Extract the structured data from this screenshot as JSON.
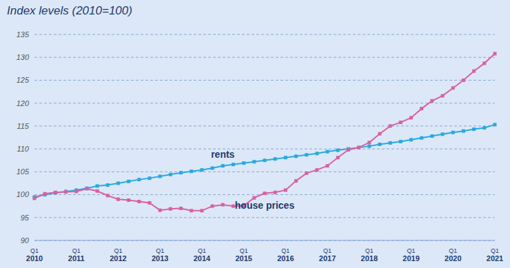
{
  "chart_data": {
    "type": "line",
    "title": "Index levels (2010=100)",
    "categories": [
      "Q1 2010",
      null,
      null,
      null,
      "Q1 2011",
      null,
      null,
      null,
      "Q1 2012",
      null,
      null,
      null,
      "Q1 2013",
      null,
      null,
      null,
      "Q1 2014",
      null,
      null,
      null,
      "Q1 2015",
      null,
      null,
      null,
      "Q1 2016",
      null,
      null,
      null,
      "Q1 2017",
      null,
      null,
      null,
      "Q1 2018",
      null,
      null,
      null,
      "Q1 2019",
      null,
      null,
      null,
      "Q1 2020",
      null,
      null,
      null,
      "Q1 2021"
    ],
    "series": [
      {
        "name": "rents",
        "color": "#29a9e0",
        "marker": "square",
        "values": [
          99.5,
          100.0,
          100.4,
          100.7,
          101.0,
          101.4,
          101.9,
          102.1,
          102.5,
          102.9,
          103.3,
          103.6,
          104.0,
          104.4,
          104.8,
          105.1,
          105.4,
          105.8,
          106.3,
          106.6,
          106.9,
          107.2,
          107.5,
          107.8,
          108.1,
          108.4,
          108.7,
          109.0,
          109.4,
          109.7,
          110.0,
          110.3,
          110.6,
          111.0,
          111.3,
          111.6,
          112.0,
          112.4,
          112.8,
          113.2,
          113.6,
          113.9,
          114.3,
          114.6,
          115.3
        ]
      },
      {
        "name": "house prices",
        "color": "#d9619f",
        "marker": "square",
        "values": [
          99.2,
          100.2,
          100.5,
          100.6,
          100.7,
          101.3,
          100.8,
          99.8,
          99.0,
          98.8,
          98.5,
          98.2,
          96.6,
          96.9,
          97.0,
          96.5,
          96.5,
          97.5,
          97.8,
          97.5,
          97.6,
          99.3,
          100.3,
          100.5,
          101.0,
          103.0,
          104.7,
          105.4,
          106.3,
          108.1,
          109.8,
          110.3,
          111.4,
          113.3,
          115.0,
          115.8,
          116.8,
          118.8,
          120.5,
          121.6,
          123.3,
          125.0,
          127.0,
          128.7,
          130.8
        ]
      }
    ],
    "ylim": [
      90,
      135
    ],
    "yticks": [
      90,
      95,
      100,
      105,
      110,
      115,
      120,
      125,
      130,
      135
    ],
    "grid": true
  }
}
